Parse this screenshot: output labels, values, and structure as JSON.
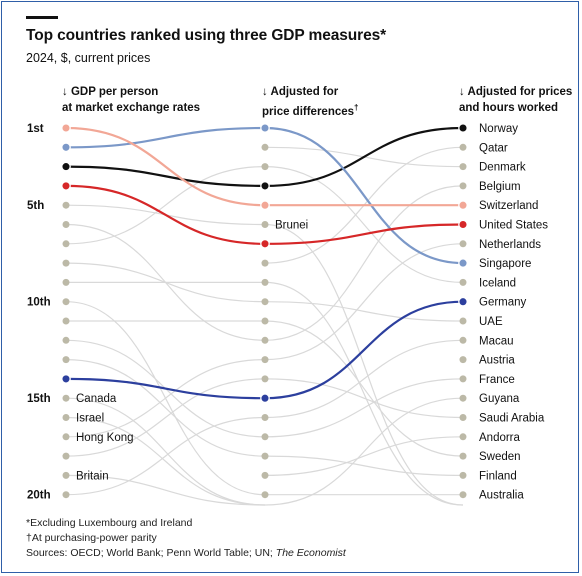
{
  "title": "Top countries ranked using three GDP measures*",
  "subtitle": "2024, $, current prices",
  "columns": [
    {
      "arrow": "↓",
      "line1": "GDP per person",
      "line2": "at market exchange rates",
      "sup": ""
    },
    {
      "arrow": "↓",
      "line1": "Adjusted for",
      "line2": "price differences",
      "sup": "†"
    },
    {
      "arrow": "↓",
      "line1": "Adjusted for prices",
      "line2": "and hours worked",
      "sup": ""
    }
  ],
  "rank_labels": [
    "1st",
    "5th",
    "10th",
    "15th",
    "20th"
  ],
  "footnotes": {
    "note1": "*Excluding Luxembourg and Ireland",
    "note2": "†At purchasing-power parity",
    "sources": "Sources: OECD; World Bank; Penn World Table; UN; ",
    "sources_italic": "The Economist"
  },
  "colors": {
    "norway": "#111111",
    "singapore": "#7b98c8",
    "switzerland": "#f2a796",
    "united_states": "#d62728",
    "germany": "#2c3f9e",
    "other_dot": "#bcb9a7",
    "other_line": "#d9d9d9"
  },
  "chart_data": {
    "type": "slope",
    "stages": [
      "GDP per person at market exchange rates",
      "Adjusted for price differences",
      "Adjusted for prices and hours worked"
    ],
    "highlighted": [
      {
        "name": "Norway",
        "ranks": [
          3,
          4,
          1
        ],
        "color": "#111111"
      },
      {
        "name": "Singapore",
        "ranks": [
          2,
          1,
          8
        ],
        "color": "#7b98c8"
      },
      {
        "name": "Switzerland",
        "ranks": [
          1,
          5,
          5
        ],
        "color": "#f2a796"
      },
      {
        "name": "United States",
        "ranks": [
          4,
          7,
          6
        ],
        "color": "#d62728"
      },
      {
        "name": "Germany",
        "ranks": [
          14,
          15,
          10
        ],
        "color": "#2c3f9e"
      }
    ],
    "first_column_labels": [
      {
        "rank": 15,
        "name": "Canada"
      },
      {
        "rank": 16,
        "name": "Israel"
      },
      {
        "rank": 17,
        "name": "Hong Kong"
      },
      {
        "rank": 19,
        "name": "Britain"
      }
    ],
    "middle_column_labels": [
      {
        "rank": 6,
        "name": "Brunei"
      }
    ],
    "third_column_ranking": [
      "Norway",
      "Qatar",
      "Denmark",
      "Belgium",
      "Switzerland",
      "United States",
      "Netherlands",
      "Singapore",
      "Iceland",
      "Germany",
      "UAE",
      "Macau",
      "Austria",
      "France",
      "Guyana",
      "Saudi Arabia",
      "Andorra",
      "Sweden",
      "Finland",
      "Australia"
    ],
    "background_links": [
      {
        "from": [
          5,
          6
        ],
        "to": [
          20,
          21
        ]
      },
      {
        "from": [
          6,
          12
        ],
        "to": [
          21,
          21
        ]
      },
      {
        "from": [
          7,
          3
        ],
        "to": [
          21,
          21
        ]
      },
      {
        "from": [
          8,
          10
        ],
        "to": [
          21,
          21
        ]
      },
      {
        "from": [
          9,
          9
        ],
        "to": [
          21,
          13
        ]
      },
      {
        "from": [
          10,
          20
        ],
        "to": [
          21,
          21
        ]
      },
      {
        "from": [
          11,
          11
        ],
        "to": [
          21,
          21
        ]
      },
      {
        "from": [
          12,
          17
        ],
        "to": [
          21,
          21
        ]
      },
      {
        "from": [
          13,
          18
        ],
        "to": [
          21,
          21
        ]
      },
      {
        "from": [
          15,
          21
        ],
        "to": [
          21,
          21
        ]
      },
      {
        "from": [
          16,
          21
        ],
        "to": [
          21,
          21
        ]
      },
      {
        "from": [
          17,
          13
        ],
        "to": [
          21,
          21
        ]
      },
      {
        "from": [
          18,
          14
        ],
        "to": [
          21,
          21
        ]
      },
      {
        "from": [
          19,
          21
        ],
        "to": [
          21,
          21
        ]
      },
      {
        "from": [
          20,
          16
        ],
        "to": [
          21,
          21
        ]
      }
    ],
    "middle_to_right_links": [
      {
        "from": 2,
        "to": 3
      },
      {
        "from": 3,
        "to": 9
      },
      {
        "from": 6,
        "to": 21
      },
      {
        "from": 8,
        "to": 2
      },
      {
        "from": 9,
        "to": 21
      },
      {
        "from": 10,
        "to": 11
      },
      {
        "from": 11,
        "to": 18
      },
      {
        "from": 12,
        "to": 4
      },
      {
        "from": 13,
        "to": 7
      },
      {
        "from": 14,
        "to": 16
      },
      {
        "from": 16,
        "to": 12
      },
      {
        "from": 17,
        "to": 14
      },
      {
        "from": 18,
        "to": 19
      },
      {
        "from": 19,
        "to": 17
      },
      {
        "from": 20,
        "to": 20
      },
      {
        "from": 21,
        "to": 15
      }
    ]
  }
}
